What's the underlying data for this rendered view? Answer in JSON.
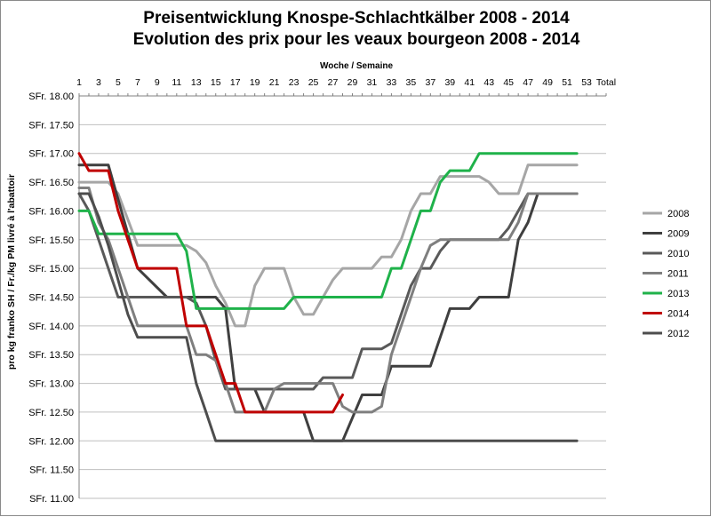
{
  "chart_data": {
    "type": "line",
    "title": "Preisentwicklung Knospe-Schlachtkälber 2008 - 2014",
    "subtitle": "Evolution des prix pour les veaux bourgeon 2008 - 2014",
    "xlabel": "Woche / Semaine",
    "ylabel": "pro kg franko SH / Fr./kg PM livré à l'abattoir",
    "x_tick_labels": [
      "1",
      "3",
      "5",
      "7",
      "9",
      "11",
      "13",
      "15",
      "17",
      "19",
      "21",
      "23",
      "25",
      "27",
      "29",
      "31",
      "33",
      "35",
      "37",
      "39",
      "41",
      "43",
      "45",
      "47",
      "49",
      "51",
      "53",
      "Total"
    ],
    "y_tick_labels": [
      "SFr. 11.00",
      "SFr. 11.50",
      "SFr. 12.00",
      "SFr. 12.50",
      "SFr. 13.00",
      "SFr. 13.50",
      "SFr. 14.00",
      "SFr. 14.50",
      "SFr. 15.00",
      "SFr. 15.50",
      "SFr. 16.00",
      "SFr. 16.50",
      "SFr. 17.00",
      "SFr. 17.50",
      "SFr. 18.00"
    ],
    "ylim": [
      11.0,
      18.0
    ],
    "xlim": [
      1,
      55
    ],
    "x_axis_position": "top",
    "grid": "horizontal",
    "legend_position": "right",
    "series": [
      {
        "name": "2008",
        "color": "#a6a6a6",
        "x": [
          1,
          4,
          5,
          7,
          12,
          13,
          14,
          15,
          16,
          17,
          18,
          19,
          20,
          22,
          23,
          24,
          25,
          26,
          27,
          28,
          29,
          30,
          31,
          32,
          33,
          34,
          35,
          36,
          37,
          38,
          39,
          40,
          41,
          42,
          43,
          44,
          45,
          46,
          47,
          48,
          49,
          50,
          51,
          52
        ],
        "y": [
          16.5,
          16.5,
          16.3,
          15.4,
          15.4,
          15.3,
          15.1,
          14.7,
          14.4,
          14.0,
          14.0,
          14.7,
          15.0,
          15.0,
          14.5,
          14.2,
          14.2,
          14.5,
          14.8,
          15.0,
          15.0,
          15.0,
          15.0,
          15.2,
          15.2,
          15.5,
          16.0,
          16.3,
          16.3,
          16.6,
          16.6,
          16.6,
          16.6,
          16.6,
          16.5,
          16.3,
          16.3,
          16.3,
          16.8,
          16.8,
          16.8,
          16.8,
          16.8,
          16.8
        ]
      },
      {
        "name": "2009",
        "color": "#3f3f3f",
        "x": [
          1,
          4,
          7,
          10,
          15,
          16,
          17,
          18,
          19,
          20,
          24,
          25,
          26,
          27,
          28,
          29,
          30,
          31,
          32,
          33,
          34,
          35,
          36,
          37,
          38,
          39,
          40,
          41,
          42,
          43,
          44,
          45,
          46,
          47,
          48,
          49,
          50,
          51,
          52
        ],
        "y": [
          16.8,
          16.8,
          15.0,
          14.5,
          14.5,
          14.3,
          12.9,
          12.9,
          12.9,
          12.5,
          12.5,
          12.0,
          12.0,
          12.0,
          12.0,
          12.4,
          12.8,
          12.8,
          12.8,
          13.3,
          13.3,
          13.3,
          13.3,
          13.3,
          13.8,
          14.3,
          14.3,
          14.3,
          14.5,
          14.5,
          14.5,
          14.5,
          15.5,
          15.8,
          16.3,
          16.3,
          16.3,
          16.3,
          16.3
        ]
      },
      {
        "name": "2010",
        "color": "#595959",
        "x": [
          1,
          2,
          4,
          5,
          6,
          7,
          8,
          12,
          13,
          14,
          15,
          16,
          17,
          18,
          19,
          20,
          21,
          22,
          23,
          24,
          25,
          26,
          27,
          28,
          29,
          30,
          31,
          32,
          33,
          34,
          35,
          36,
          37,
          38,
          39,
          40,
          41,
          42,
          43,
          44,
          45,
          46,
          47,
          48,
          49,
          50,
          51,
          52
        ],
        "y": [
          16.3,
          16.0,
          15.0,
          14.5,
          14.5,
          14.5,
          14.5,
          14.5,
          14.4,
          14.0,
          13.4,
          12.9,
          12.9,
          12.9,
          12.9,
          12.9,
          12.9,
          12.9,
          12.9,
          12.9,
          12.9,
          13.1,
          13.1,
          13.1,
          13.1,
          13.6,
          13.6,
          13.6,
          13.7,
          14.2,
          14.7,
          15.0,
          15.0,
          15.3,
          15.5,
          15.5,
          15.5,
          15.5,
          15.5,
          15.5,
          15.7,
          16.0,
          16.3,
          16.3,
          16.3,
          16.3,
          16.3,
          16.3
        ]
      },
      {
        "name": "2011",
        "color": "#7f7f7f",
        "x": [
          1,
          2,
          3,
          4,
          5,
          6,
          7,
          8,
          11,
          12,
          13,
          14,
          15,
          16,
          17,
          18,
          19,
          20,
          21,
          22,
          23,
          24,
          25,
          26,
          27,
          28,
          29,
          30,
          31,
          32,
          33,
          34,
          35,
          36,
          37,
          38,
          39,
          40,
          41,
          42,
          43,
          44,
          45,
          46,
          47,
          48,
          49,
          50,
          51,
          52
        ],
        "y": [
          16.4,
          16.4,
          15.8,
          15.5,
          15.0,
          14.5,
          14.0,
          14.0,
          14.0,
          14.0,
          13.5,
          13.5,
          13.4,
          13.0,
          12.5,
          12.5,
          12.5,
          12.5,
          12.9,
          13.0,
          13.0,
          13.0,
          13.0,
          13.0,
          13.0,
          12.6,
          12.5,
          12.5,
          12.5,
          12.6,
          13.5,
          14.0,
          14.5,
          15.0,
          15.4,
          15.5,
          15.5,
          15.5,
          15.5,
          15.5,
          15.5,
          15.5,
          15.5,
          15.8,
          16.3,
          16.3,
          16.3,
          16.3,
          16.3,
          16.3
        ]
      },
      {
        "name": "2013",
        "color": "#1fb24a",
        "x": [
          1,
          2,
          3,
          11,
          12,
          13,
          14,
          15,
          16,
          17,
          18,
          19,
          20,
          21,
          22,
          23,
          24,
          25,
          26,
          27,
          28,
          29,
          30,
          31,
          32,
          33,
          34,
          35,
          36,
          37,
          38,
          39,
          40,
          41,
          42,
          43,
          44,
          45,
          46,
          47,
          48,
          49,
          50,
          51,
          52
        ],
        "y": [
          16.0,
          16.0,
          15.6,
          15.6,
          15.3,
          14.3,
          14.3,
          14.3,
          14.3,
          14.3,
          14.3,
          14.3,
          14.3,
          14.3,
          14.3,
          14.5,
          14.5,
          14.5,
          14.5,
          14.5,
          14.5,
          14.5,
          14.5,
          14.5,
          14.5,
          15.0,
          15.0,
          15.5,
          16.0,
          16.0,
          16.5,
          16.7,
          16.7,
          16.7,
          17.0,
          17.0,
          17.0,
          17.0,
          17.0,
          17.0,
          17.0,
          17.0,
          17.0,
          17.0,
          17.0
        ]
      },
      {
        "name": "2014",
        "color": "#c00000",
        "x": [
          1,
          2,
          3,
          4,
          5,
          6,
          7,
          8,
          9,
          10,
          11,
          12,
          13,
          14,
          15,
          16,
          17,
          18,
          19,
          20,
          21,
          22,
          23,
          24,
          25,
          26,
          27,
          28
        ],
        "y": [
          17.0,
          16.7,
          16.7,
          16.7,
          16.0,
          15.5,
          15.0,
          15.0,
          15.0,
          15.0,
          15.0,
          14.0,
          14.0,
          14.0,
          13.5,
          13.0,
          13.0,
          12.5,
          12.5,
          12.5,
          12.5,
          12.5,
          12.5,
          12.5,
          12.5,
          12.5,
          12.5,
          12.8
        ]
      },
      {
        "name": "2012",
        "color": "#4d4d4d",
        "x": [
          1,
          2,
          3,
          4,
          5,
          6,
          7,
          8,
          9,
          10,
          11,
          12,
          13,
          14,
          15,
          16,
          17,
          18,
          19,
          20,
          21,
          22,
          23,
          24,
          25,
          26,
          27,
          28,
          29,
          30,
          31,
          32,
          33,
          34,
          35,
          36,
          37,
          38,
          39,
          40,
          41,
          42,
          43,
          44,
          45,
          46,
          47,
          48,
          49,
          50,
          51,
          52
        ],
        "y": [
          16.3,
          16.3,
          15.9,
          15.4,
          14.8,
          14.2,
          13.8,
          13.8,
          13.8,
          13.8,
          13.8,
          13.8,
          13.0,
          12.5,
          12.0,
          12.0,
          12.0,
          12.0,
          12.0,
          12.0,
          12.0,
          12.0,
          12.0,
          12.0,
          12.0,
          12.0,
          12.0,
          12.0,
          12.0,
          12.0,
          12.0,
          12.0,
          12.0,
          12.0,
          12.0,
          12.0,
          12.0,
          12.0,
          12.0,
          12.0,
          12.0,
          12.0,
          12.0,
          12.0,
          12.0,
          12.0,
          12.0,
          12.0,
          12.0,
          12.0,
          12.0,
          12.0
        ]
      }
    ]
  }
}
